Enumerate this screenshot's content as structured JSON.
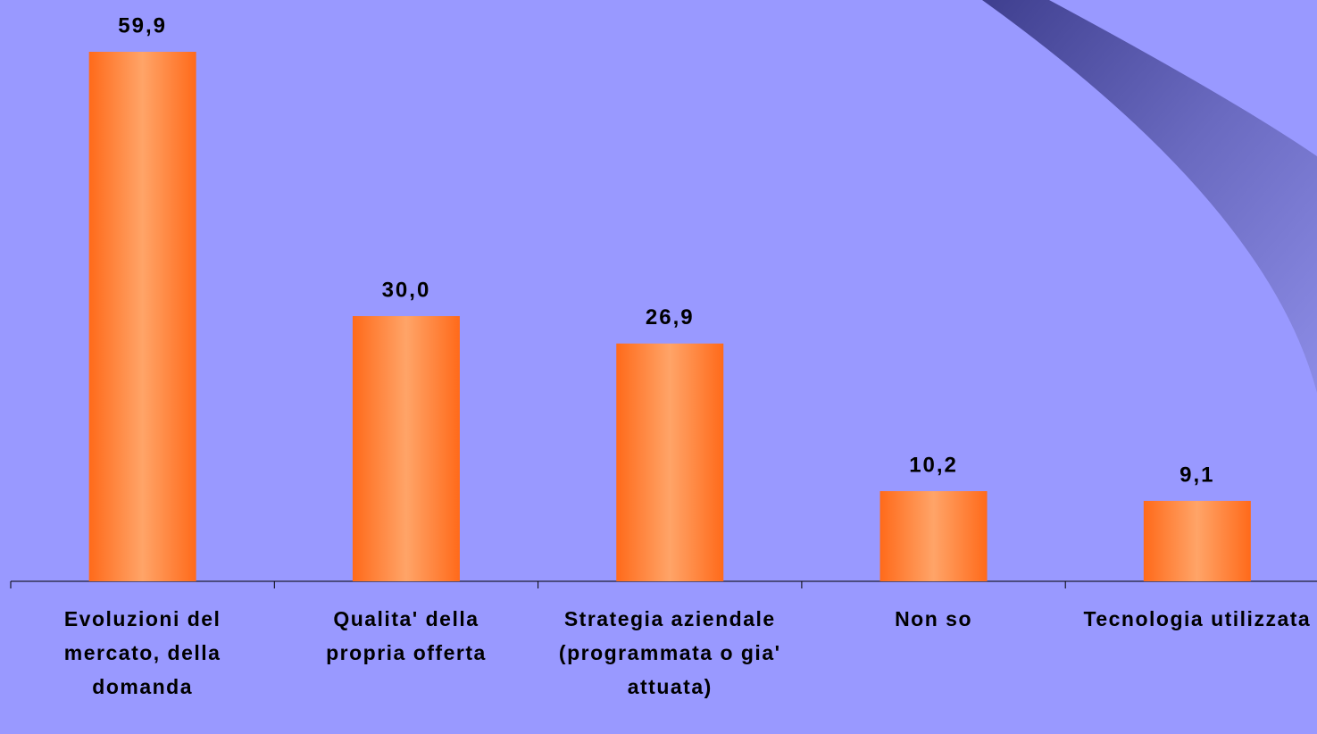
{
  "chart_data": {
    "type": "bar",
    "categories": [
      "Evoluzioni del mercato, della domanda",
      "Qualita' della propria offerta",
      "Strategia aziendale (programmata o gia' attuata)",
      "Non so",
      "Tecnologia utilizzata"
    ],
    "values": [
      59.9,
      30.0,
      26.9,
      10.2,
      9.1
    ],
    "value_labels": [
      "59,9",
      "30,0",
      "26,9",
      "10,2",
      "9,1"
    ],
    "color": "#ff7f33"
  }
}
